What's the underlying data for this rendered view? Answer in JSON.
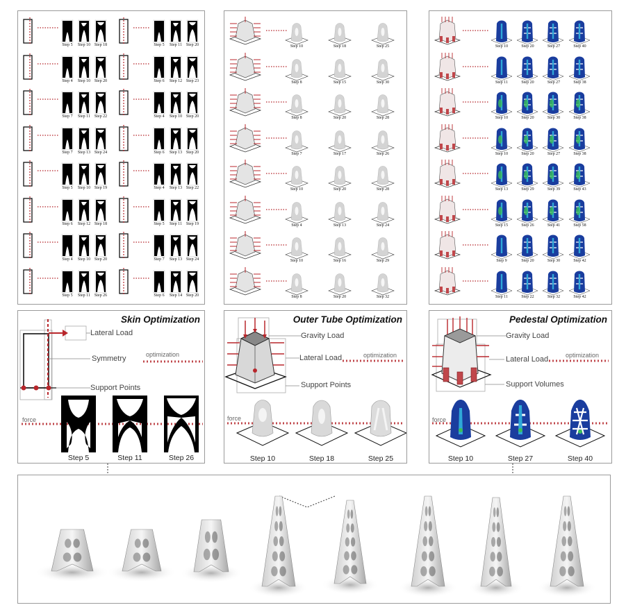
{
  "top": {
    "skin": {
      "rows": [
        {
          "a": [
            "Step 5",
            "Step 10",
            "Step 18"
          ],
          "b": [
            "Step 5",
            "Step 11",
            "Step 20"
          ]
        },
        {
          "a": [
            "Step 4",
            "Step 10",
            "Step 20"
          ],
          "b": [
            "Step 6",
            "Step 12",
            "Step 23"
          ]
        },
        {
          "a": [
            "Step 7",
            "Step 11",
            "Step 22"
          ],
          "b": [
            "Step 4",
            "Step 10",
            "Step 20"
          ]
        },
        {
          "a": [
            "Step 7",
            "Step 13",
            "Step 24"
          ],
          "b": [
            "Step 6",
            "Step 13",
            "Step 20"
          ]
        },
        {
          "a": [
            "Step 5",
            "Step 10",
            "Step 19"
          ],
          "b": [
            "Step 4",
            "Step 13",
            "Step 22"
          ]
        },
        {
          "a": [
            "Step 6",
            "Step 12",
            "Step 18"
          ],
          "b": [
            "Step 5",
            "Step 11",
            "Step 19"
          ]
        },
        {
          "a": [
            "Step 4",
            "Step 10",
            "Step 20"
          ],
          "b": [
            "Step 7",
            "Step 13",
            "Step 24"
          ]
        },
        {
          "a": [
            "Step 5",
            "Step 11",
            "Step 26"
          ],
          "b": [
            "Step 6",
            "Step 14",
            "Step 20"
          ]
        }
      ]
    },
    "tube": {
      "rows": [
        [
          "Step 10",
          "Step 18",
          "Step 25"
        ],
        [
          "Step 8",
          "Step 15",
          "Step 30"
        ],
        [
          "Step 8",
          "Step 20",
          "Step 28"
        ],
        [
          "Step 7",
          "Step 17",
          "Step 26"
        ],
        [
          "Step 10",
          "Step 20",
          "Step 28"
        ],
        [
          "Step 4",
          "Step 13",
          "Step 24"
        ],
        [
          "Step 10",
          "Step 16",
          "Step 29"
        ],
        [
          "Step 8",
          "Step 20",
          "Step 32"
        ]
      ]
    },
    "pedestal": {
      "rows": [
        [
          "Step 10",
          "Step 20",
          "Step 27",
          "Step 40"
        ],
        [
          "Step 11",
          "Step 20",
          "Step 27",
          "Step 38"
        ],
        [
          "Step 10",
          "Step 20",
          "Step 30",
          "Step 38"
        ],
        [
          "Step 10",
          "Step 20",
          "Step 27",
          "Step 38"
        ],
        [
          "Step 13",
          "Step 29",
          "Step 39",
          "Step 43"
        ],
        [
          "Step 15",
          "Step 26",
          "Step 41",
          "Step 58"
        ],
        [
          "Step 9",
          "Step 20",
          "Step 30",
          "Step 42"
        ],
        [
          "Step 11",
          "Step 22",
          "Step 32",
          "Step 42"
        ]
      ]
    }
  },
  "skin_panel": {
    "title": "Skin Optimization",
    "lateral_load": "Lateral Load",
    "symmetry": "Symmetry",
    "optimization": "optimization",
    "support_points": "Support Points",
    "force": "force",
    "steps": [
      "Step 5",
      "Step 11",
      "Step 26"
    ]
  },
  "tube_panel": {
    "title": "Outer Tube Optimization",
    "gravity_load": "Gravity Load",
    "lateral_load": "Lateral Load",
    "optimization": "optimization",
    "support_points": "Support Points",
    "force": "force",
    "steps": [
      "Step 10",
      "Step 18",
      "Step 25"
    ]
  },
  "pedestal_panel": {
    "title": "Pedestal Optimization",
    "gravity_load": "Gravity Load",
    "lateral_load": "Lateral Load",
    "optimization": "optimization",
    "support_volumes": "Support Volumes",
    "force": "force",
    "steps": [
      "Step 10",
      "Step 27",
      "Step 40"
    ]
  },
  "colors": {
    "load_red": "#b8262b",
    "dotted_red": "#c0474b",
    "stress_blue": "#1a3d9e",
    "stress_green": "#3bbf5a",
    "stress_cyan": "#2fa8d8"
  }
}
